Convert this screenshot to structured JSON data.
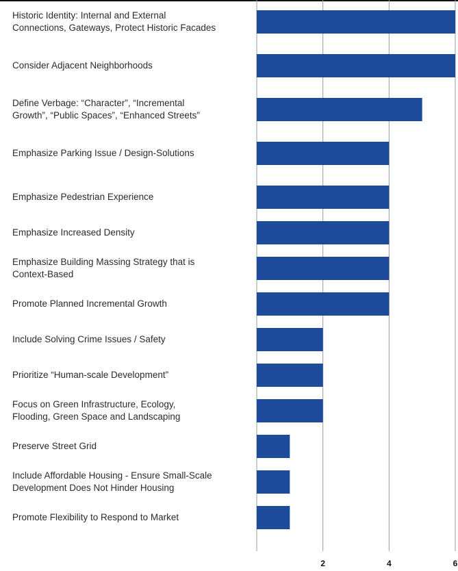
{
  "chart_data": {
    "type": "bar",
    "orientation": "horizontal",
    "categories": [
      [
        "Historic Identity: Internal and External",
        "Connections, Gateways, Protect Historic Facades"
      ],
      [
        "Consider Adjacent Neighborhoods"
      ],
      [
        "Define Verbage: “Character”, “Incremental",
        "Growth”, “Public Spaces”, “Enhanced Streets”"
      ],
      [
        "Emphasize Parking Issue / Design-Solutions"
      ],
      [
        "Emphasize Pedestrian Experience"
      ],
      [
        "Emphasize Increased Density"
      ],
      [
        "Emphasize Building Massing Strategy that is",
        "Context-Based"
      ],
      [
        "Promote Planned Incremental Growth"
      ],
      [
        "Include Solving Crime Issues / Safety"
      ],
      [
        "Prioritize “Human-scale Development”"
      ],
      [
        "Focus on Green Infrastructure, Ecology,",
        "Flooding, Green Space and Landscaping"
      ],
      [
        "Preserve Street Grid"
      ],
      [
        "Include Affordable Housing - Ensure Small-Scale",
        "Development Does Not Hinder Housing"
      ],
      [
        "Promote Flexibility to Respond to Market"
      ]
    ],
    "values": [
      6,
      6,
      5,
      4,
      4,
      4,
      4,
      4,
      2,
      2,
      2,
      1,
      1,
      1
    ],
    "xlim": [
      0,
      6
    ],
    "xticks": [
      2,
      4,
      6
    ],
    "xtick_labels": [
      "2",
      "4",
      "6"
    ],
    "grid": true,
    "bar_color": "#1d4a9a",
    "grid_color": "#999999",
    "title": "",
    "xlabel": "",
    "ylabel": ""
  }
}
